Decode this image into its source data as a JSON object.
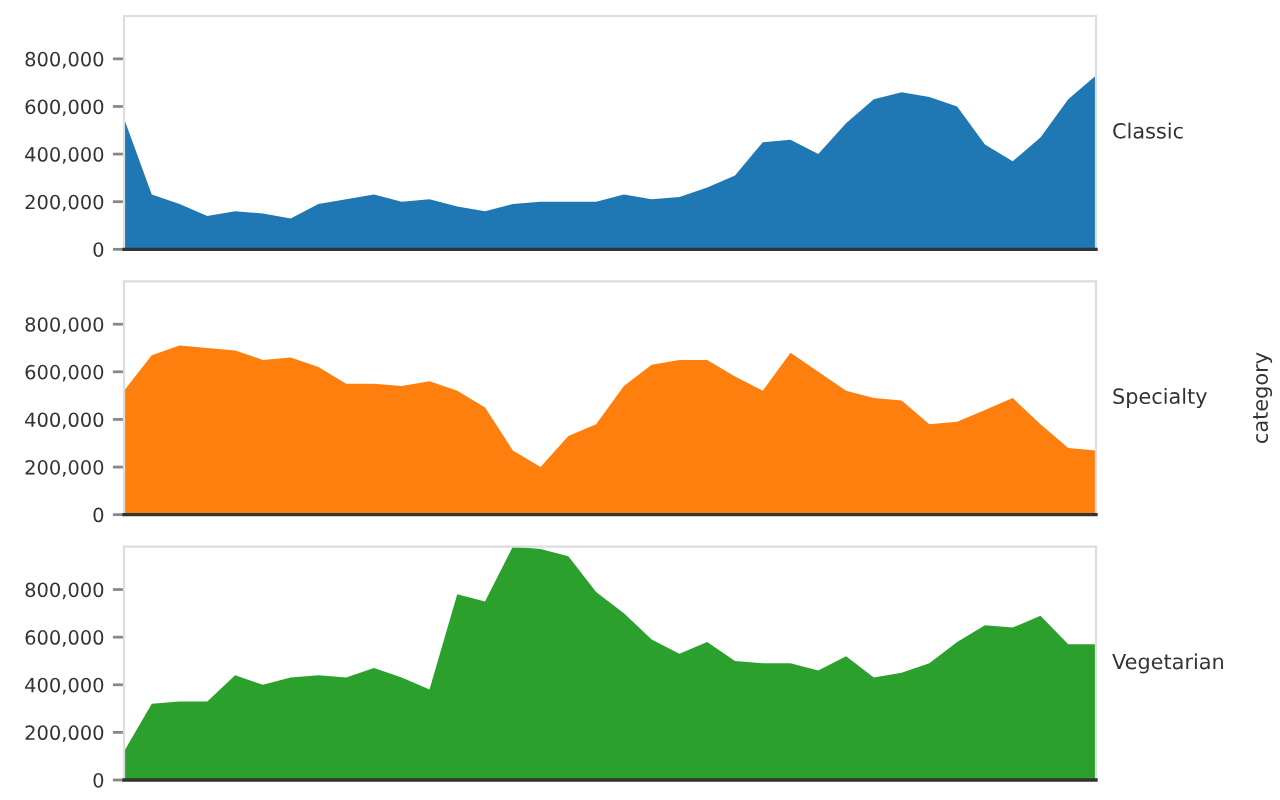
{
  "chart_data": [
    {
      "type": "area",
      "categories": [
        null,
        null,
        null,
        null,
        null,
        null,
        null,
        null,
        null,
        null,
        null,
        null,
        null,
        null,
        null,
        null,
        null,
        null,
        null,
        null,
        null,
        null,
        null,
        null,
        null,
        null,
        null,
        null,
        null,
        null,
        null,
        null,
        null,
        null,
        null,
        null
      ],
      "series": [
        {
          "name": "Classic",
          "color": "#1f77b4",
          "values": [
            550000,
            230000,
            190000,
            140000,
            160000,
            150000,
            130000,
            190000,
            210000,
            230000,
            200000,
            210000,
            180000,
            160000,
            190000,
            200000,
            200000,
            200000,
            230000,
            210000,
            220000,
            260000,
            310000,
            450000,
            460000,
            400000,
            530000,
            630000,
            660000,
            640000,
            600000,
            440000,
            370000,
            470000,
            630000,
            730000
          ]
        }
      ],
      "ylim": [
        0,
        980000
      ],
      "yticks": [
        0,
        {
          "value": 200000,
          "label": "200,000"
        },
        {
          "value": 400000,
          "label": "400,000"
        },
        {
          "value": 600000,
          "label": "600,000"
        },
        {
          "value": 800000,
          "label": "800,000"
        }
      ],
      "tick_labels": "y"
    },
    {
      "type": "area",
      "categories": [
        null,
        null,
        null,
        null,
        null,
        null,
        null,
        null,
        null,
        null,
        null,
        null,
        null,
        null,
        null,
        null,
        null,
        null,
        null,
        null,
        null,
        null,
        null,
        null,
        null,
        null,
        null,
        null,
        null,
        null,
        null,
        null,
        null,
        null,
        null,
        null
      ],
      "series": [
        {
          "name": "Specialty",
          "color": "#ff7f0e",
          "values": [
            520000,
            670000,
            710000,
            700000,
            690000,
            650000,
            660000,
            620000,
            550000,
            550000,
            540000,
            560000,
            520000,
            450000,
            270000,
            200000,
            330000,
            380000,
            540000,
            630000,
            650000,
            650000,
            580000,
            520000,
            680000,
            600000,
            520000,
            490000,
            480000,
            380000,
            390000,
            440000,
            490000,
            380000,
            280000,
            270000
          ]
        }
      ],
      "ylim": [
        0,
        980000
      ],
      "yticks": [
        0,
        {
          "value": 200000,
          "label": "200,000"
        },
        {
          "value": 400000,
          "label": "400,000"
        },
        {
          "value": 600000,
          "label": "600,000"
        },
        {
          "value": 800000,
          "label": "800,000"
        }
      ],
      "tick_labels": "y",
      "annotations": [
        "category"
      ]
    },
    {
      "type": "area",
      "categories": [
        null,
        null,
        null,
        null,
        null,
        null,
        null,
        null,
        null,
        null,
        null,
        null,
        null,
        null,
        null,
        null,
        null,
        null,
        null,
        null,
        null,
        null,
        null,
        null,
        null,
        null,
        null,
        null,
        null,
        null,
        null,
        null,
        null,
        null,
        null,
        null
      ],
      "series": [
        {
          "name": "Vegetarian",
          "color": "#2ca02c",
          "values": [
            120000,
            320000,
            330000,
            330000,
            440000,
            400000,
            430000,
            440000,
            430000,
            470000,
            430000,
            380000,
            780000,
            750000,
            980000,
            970000,
            940000,
            790000,
            700000,
            590000,
            530000,
            580000,
            500000,
            490000,
            490000,
            460000,
            520000,
            430000,
            450000,
            490000,
            580000,
            650000,
            640000,
            690000,
            570000,
            570000
          ]
        }
      ],
      "ylim": [
        0,
        980000
      ],
      "yticks": [
        0,
        {
          "value": 200000,
          "label": "200,000"
        },
        {
          "value": 400000,
          "label": "400,000"
        },
        {
          "value": 600000,
          "label": "600,000"
        },
        {
          "value": 800000,
          "label": "800,000"
        }
      ],
      "tick_labels": "y"
    }
  ]
}
